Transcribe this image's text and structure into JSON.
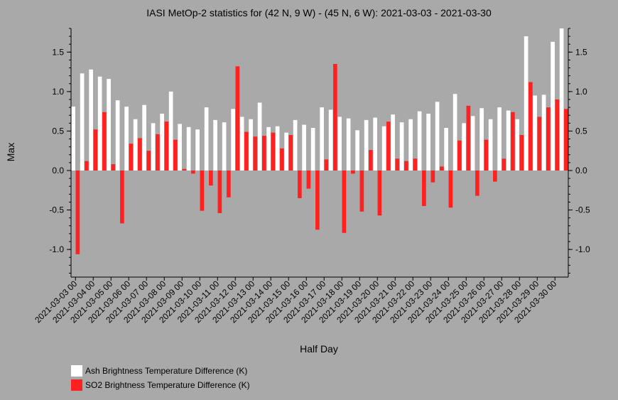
{
  "chart_data": {
    "type": "bar",
    "title": "IASI MetOp-2 statistics for (42 N, 9 W) - (45 N, 6 W): 2021-03-03 - 2021-03-30",
    "xlabel": "Half Day",
    "ylabel": "Max",
    "ylim": [
      -1.35,
      1.8
    ],
    "yticks": [
      1.5,
      1.0,
      0.5,
      0.0,
      -0.5,
      -1.0
    ],
    "ytick_labels": [
      "1.5",
      "1.0",
      "0.5",
      "0.0",
      "-0.5",
      "-1.0"
    ],
    "categories": [
      "2021-03-03 00",
      "2021-03-03 12",
      "2021-03-04 00",
      "2021-03-04 12",
      "2021-03-05 00",
      "2021-03-05 12",
      "2021-03-06 00",
      "2021-03-06 12",
      "2021-03-07 00",
      "2021-03-07 12",
      "2021-03-08 00",
      "2021-03-08 12",
      "2021-03-09 00",
      "2021-03-09 12",
      "2021-03-10 00",
      "2021-03-10 12",
      "2021-03-11 00",
      "2021-03-11 12",
      "2021-03-12 00",
      "2021-03-12 12",
      "2021-03-13 00",
      "2021-03-13 12",
      "2021-03-14 00",
      "2021-03-14 12",
      "2021-03-15 00",
      "2021-03-15 12",
      "2021-03-16 00",
      "2021-03-16 12",
      "2021-03-17 00",
      "2021-03-17 12",
      "2021-03-18 00",
      "2021-03-18 12",
      "2021-03-19 00",
      "2021-03-19 12",
      "2021-03-20 00",
      "2021-03-20 12",
      "2021-03-21 00",
      "2021-03-21 12",
      "2021-03-22 00",
      "2021-03-22 12",
      "2021-03-23 00",
      "2021-03-23 12",
      "2021-03-24 00",
      "2021-03-24 12",
      "2021-03-25 00",
      "2021-03-25 12",
      "2021-03-26 00",
      "2021-03-26 12",
      "2021-03-27 00",
      "2021-03-27 12",
      "2021-03-28 00",
      "2021-03-28 12",
      "2021-03-29 00",
      "2021-03-29 12",
      "2021-03-30 00",
      "2021-03-30 12"
    ],
    "tick_labels": [
      "2021-03-03 00",
      "2021-03-04 00",
      "2021-03-05 00",
      "2021-03-06 00",
      "2021-03-07 00",
      "2021-03-08 00",
      "2021-03-09 00",
      "2021-03-10 00",
      "2021-03-11 00",
      "2021-03-12 00",
      "2021-03-13 00",
      "2021-03-14 00",
      "2021-03-15 00",
      "2021-03-16 00",
      "2021-03-17 00",
      "2021-03-18 00",
      "2021-03-19 00",
      "2021-03-20 00",
      "2021-03-21 00",
      "2021-03-22 00",
      "2021-03-23 00",
      "2021-03-24 00",
      "2021-03-25 00",
      "2021-03-26 00",
      "2021-03-27 00",
      "2021-03-28 00",
      "2021-03-29 00",
      "2021-03-30 00"
    ],
    "series": [
      {
        "name": "Ash Brightness Temperature Difference (K)",
        "color": "#ffffff",
        "values": [
          0.81,
          1.23,
          1.28,
          1.19,
          1.16,
          0.89,
          0.81,
          0.65,
          0.83,
          0.6,
          0.72,
          1.0,
          0.59,
          0.55,
          0.52,
          0.8,
          0.64,
          0.61,
          0.78,
          0.68,
          0.65,
          0.86,
          0.55,
          0.56,
          0.48,
          0.64,
          0.58,
          0.54,
          0.8,
          0.77,
          0.68,
          0.66,
          0.51,
          0.64,
          0.67,
          0.56,
          0.71,
          0.61,
          0.65,
          0.75,
          0.72,
          0.87,
          0.54,
          0.97,
          0.6,
          0.69,
          0.79,
          0.65,
          0.8,
          0.76,
          0.65,
          1.7,
          0.95,
          0.96,
          1.63,
          1.8
        ]
      },
      {
        "name": "SO2 Brightness Temperature Difference (K)",
        "color": "#ff2020",
        "values": [
          -1.06,
          0.12,
          0.52,
          0.74,
          0.08,
          -0.67,
          0.34,
          0.41,
          0.25,
          0.46,
          0.62,
          0.39,
          0.02,
          -0.04,
          -0.51,
          -0.19,
          -0.54,
          -0.34,
          1.32,
          0.49,
          0.43,
          0.44,
          0.48,
          0.28,
          0.45,
          -0.35,
          -0.23,
          -0.75,
          0.14,
          1.35,
          -0.79,
          -0.04,
          -0.52,
          0.26,
          -0.57,
          0.62,
          0.15,
          0.12,
          0.15,
          -0.45,
          -0.15,
          0.05,
          -0.47,
          0.38,
          0.82,
          -0.32,
          0.39,
          -0.14,
          0.15,
          0.74,
          0.45,
          1.12,
          0.68,
          0.8,
          0.9,
          0.78
        ]
      }
    ],
    "legend": "bottom-left",
    "grid": false
  }
}
